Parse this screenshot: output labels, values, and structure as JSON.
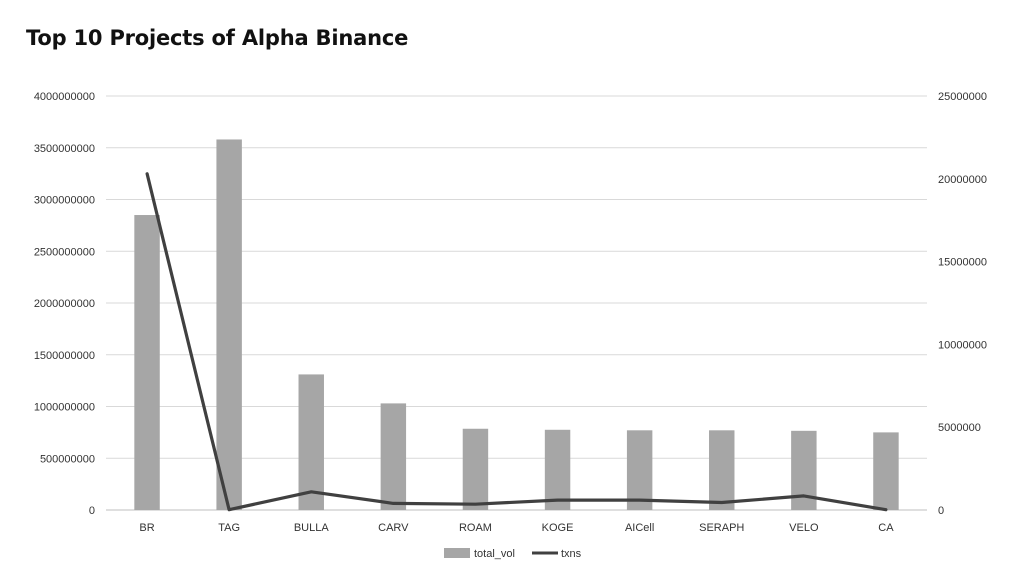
{
  "chart_data": {
    "type": "bar",
    "title": "Top 10 Projects of Alpha Binance",
    "categories": [
      "BR",
      "TAG",
      "BULLA",
      "CARV",
      "ROAM",
      "KOGE",
      "AICell",
      "SERAPH",
      "VELO",
      "CA"
    ],
    "series": [
      {
        "name": "total_vol",
        "type": "bar",
        "axis": "left",
        "color": "#a6a6a6",
        "values": [
          2850000000,
          3580000000,
          1310000000,
          1030000000,
          785000000,
          775000000,
          770000000,
          770000000,
          765000000,
          750000000
        ]
      },
      {
        "name": "txns",
        "type": "line",
        "axis": "right",
        "color": "#404040",
        "values": [
          20300000,
          20000,
          1100000,
          400000,
          350000,
          600000,
          600000,
          450000,
          850000,
          20000
        ]
      }
    ],
    "y_left": {
      "range": [
        0,
        4000000000
      ],
      "ticks": [
        "0",
        "500000000",
        "1000000000",
        "1500000000",
        "2000000000",
        "2500000000",
        "3000000000",
        "3500000000",
        "4000000000"
      ]
    },
    "y_right": {
      "range": [
        0,
        25000000
      ],
      "ticks": [
        "0",
        "5000000",
        "10000000",
        "15000000",
        "20000000",
        "25000000"
      ]
    },
    "grid": true,
    "legend": "bottom-center"
  }
}
